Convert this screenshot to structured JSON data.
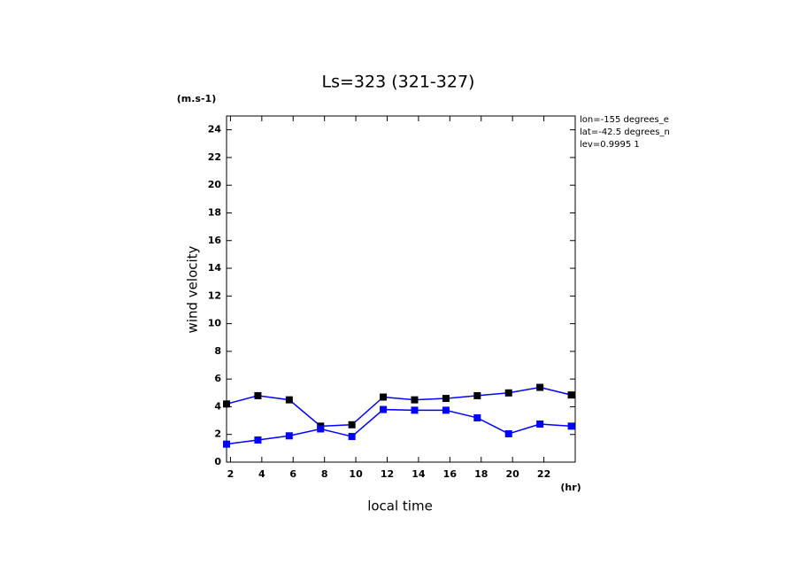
{
  "chart_data": {
    "type": "line",
    "title": "Ls=323 (321-327)",
    "x_label": "local time",
    "y_label": "wind velocity",
    "x_unit": "(hr)",
    "y_unit": "(m.s-1)",
    "annotations": [
      "lon=-155 degrees_e",
      "lat=-42.5 degrees_n",
      "lev=0.9995 1"
    ],
    "x": [
      1.75,
      3.75,
      5.75,
      7.75,
      9.75,
      11.75,
      13.75,
      15.75,
      17.75,
      19.75,
      21.75,
      23.75
    ],
    "series": [
      {
        "color": "#000000",
        "values": [
          4.2,
          4.8,
          4.5,
          2.6,
          2.7,
          4.7,
          4.5,
          4.6,
          4.8,
          5.0,
          5.4,
          4.85
        ]
      },
      {
        "color": "#0000ff",
        "values": [
          1.3,
          1.6,
          1.9,
          2.4,
          1.85,
          3.8,
          3.75,
          3.75,
          3.2,
          2.05,
          2.75,
          2.6
        ]
      }
    ],
    "line_color": "#0000ff",
    "xlim": [
      1.75,
      24
    ],
    "ylim": [
      0,
      25
    ],
    "xticks": [
      2,
      4,
      6,
      8,
      10,
      12,
      14,
      16,
      18,
      20,
      22
    ],
    "yticks": [
      0,
      2,
      4,
      6,
      8,
      10,
      12,
      14,
      16,
      18,
      20,
      22,
      24
    ]
  }
}
